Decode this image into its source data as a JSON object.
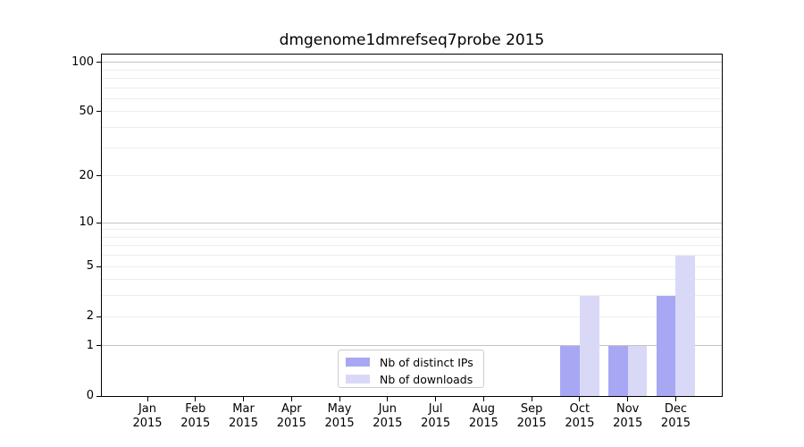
{
  "title": "dmgenome1dmrefseq7probe 2015",
  "colors": {
    "ips": "#a7a7f3",
    "downloads": "#d9d9f7",
    "grid_minor": "#ededed",
    "grid_major": "#c3c3c3",
    "axis": "#000000",
    "legend_border": "#cccccc",
    "background": "#ffffff"
  },
  "legend": {
    "items": [
      {
        "label": "Nb of distinct IPs",
        "swatch": "ips"
      },
      {
        "label": "Nb of downloads",
        "swatch": "downloads"
      }
    ]
  },
  "y_axis": {
    "tick_values": [
      100,
      50,
      20,
      10,
      5,
      2,
      1,
      0
    ],
    "minor_grid_values": [
      2,
      3,
      4,
      5,
      6,
      7,
      8,
      9,
      20,
      30,
      40,
      50,
      60,
      70,
      80,
      90
    ],
    "major_grid_values": [
      1,
      10,
      100
    ]
  },
  "x_axis": {
    "months": [
      "Jan",
      "Feb",
      "Mar",
      "Apr",
      "May",
      "Jun",
      "Jul",
      "Aug",
      "Sep",
      "Oct",
      "Nov",
      "Dec"
    ],
    "year": "2015"
  },
  "chart_data": {
    "type": "bar",
    "title": "dmgenome1dmrefseq7probe 2015",
    "categories": [
      "Jan 2015",
      "Feb 2015",
      "Mar 2015",
      "Apr 2015",
      "May 2015",
      "Jun 2015",
      "Jul 2015",
      "Aug 2015",
      "Sep 2015",
      "Oct 2015",
      "Nov 2015",
      "Dec 2015"
    ],
    "series": [
      {
        "name": "Nb of distinct IPs",
        "key": "ips",
        "values": [
          0,
          0,
          0,
          0,
          0,
          0,
          0,
          0,
          0,
          1,
          1,
          3
        ]
      },
      {
        "name": "Nb of downloads",
        "key": "downloads",
        "values": [
          0,
          0,
          0,
          0,
          0,
          0,
          0,
          0,
          0,
          3,
          1,
          6
        ]
      }
    ],
    "xlabel": "",
    "ylabel": "",
    "y_scale": "log1p",
    "y_ticks": [
      0,
      1,
      2,
      5,
      10,
      20,
      50,
      100
    ],
    "ylim": [
      0,
      113
    ],
    "grid": "horizontal, log-style minor lines, majors at 1/10/100",
    "legend_position": "lower center inside plot"
  }
}
